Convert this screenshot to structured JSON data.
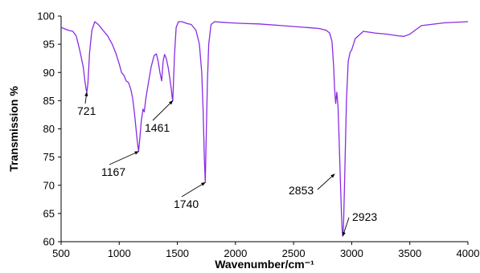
{
  "chart_data": {
    "type": "line",
    "title": "",
    "xlabel": "Wavenumber/cm⁻¹",
    "ylabel": "Transmission %",
    "xlim": [
      500,
      4000
    ],
    "ylim": [
      60,
      100
    ],
    "x_ticks": [
      500,
      1000,
      1500,
      2000,
      2500,
      3000,
      3500,
      4000
    ],
    "y_ticks": [
      60,
      65,
      70,
      75,
      80,
      85,
      90,
      95,
      100
    ],
    "x_tick_labels": [
      "500",
      "1000",
      "1500",
      "2000",
      "2500",
      "3000",
      "3500",
      "4000"
    ],
    "y_tick_labels": [
      "60",
      "65",
      "70",
      "75",
      "80",
      "85",
      "90",
      "95",
      "100"
    ],
    "grid": false,
    "legend": "none",
    "line_color": "#8a2be2",
    "series": [
      {
        "x": [
          500,
          560,
          600,
          630,
          660,
          690,
          705,
          715,
          721,
          730,
          745,
          765,
          790,
          820,
          860,
          900,
          940,
          970,
          1000,
          1020,
          1040,
          1060,
          1080,
          1100,
          1115,
          1130,
          1145,
          1157,
          1167,
          1178,
          1190,
          1205,
          1215,
          1230,
          1250,
          1275,
          1300,
          1320,
          1335,
          1350,
          1365,
          1378,
          1390,
          1405,
          1420,
          1435,
          1448,
          1456,
          1461,
          1466,
          1475,
          1490,
          1510,
          1540,
          1580,
          1620,
          1660,
          1690,
          1710,
          1722,
          1732,
          1740,
          1748,
          1758,
          1770,
          1790,
          1820,
          1880,
          1950,
          2050,
          2200,
          2400,
          2600,
          2720,
          2780,
          2810,
          2830,
          2845,
          2853,
          2862,
          2872,
          2882,
          2892,
          2902,
          2912,
          2918,
          2923,
          2930,
          2940,
          2955,
          2970,
          2985,
          3000,
          3030,
          3100,
          3200,
          3300,
          3400,
          3450,
          3500,
          3600,
          3800,
          4000
        ],
        "y": [
          98,
          97.5,
          97.3,
          96.5,
          94,
          91,
          88.5,
          87,
          86.5,
          88,
          93.5,
          97.5,
          99,
          98.5,
          97.5,
          96.5,
          95,
          93.5,
          91.5,
          90,
          89.5,
          88.5,
          88.2,
          87,
          85.5,
          83,
          80,
          77.5,
          76,
          78.5,
          81.5,
          83.5,
          83,
          85.5,
          88,
          91,
          93,
          93.3,
          92,
          90,
          88.5,
          92,
          93.2,
          92.5,
          91,
          89,
          87,
          85.5,
          85,
          88,
          93,
          98,
          99,
          99,
          98.7,
          98.5,
          97.5,
          95,
          90,
          83,
          75,
          70.5,
          78,
          88,
          95,
          98.5,
          99,
          98.9,
          98.8,
          98.7,
          98.6,
          98.3,
          98,
          97.8,
          97.5,
          97,
          95.5,
          91,
          87,
          84.5,
          86.5,
          84,
          78,
          71,
          65,
          62,
          61,
          63,
          72,
          85,
          92,
          93.5,
          94,
          96,
          97.3,
          97,
          96.8,
          96.5,
          96.4,
          96.8,
          98.3,
          98.8,
          99
        ]
      }
    ],
    "annotations": [
      {
        "text": "721",
        "x": 721,
        "y": 86.5
      },
      {
        "text": "1167",
        "x": 1167,
        "y": 76
      },
      {
        "text": "1461",
        "x": 1461,
        "y": 85
      },
      {
        "text": "1740",
        "x": 1740,
        "y": 70.5
      },
      {
        "text": "2853",
        "x": 2853,
        "y": 72
      },
      {
        "text": "2923",
        "x": 2923,
        "y": 61
      }
    ]
  }
}
